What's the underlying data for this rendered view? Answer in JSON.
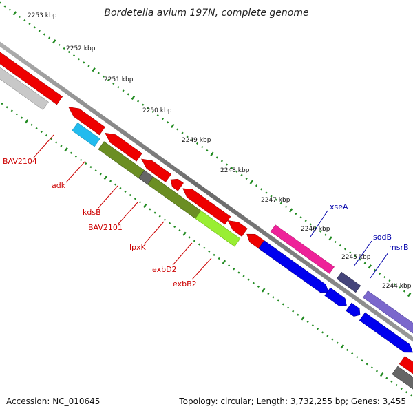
{
  "title": "Bordetella avium 197N, complete genome",
  "accession_text": "Accession: NC_010645",
  "topology_text": "Topology: circular; Length: 3,732,255 bp; Genes: 3,455",
  "colors": {
    "red": "#ee0000",
    "grey": "#c8c8c8",
    "cyan": "#22bbee",
    "olive": "#6b8e23",
    "lime": "#99ee33",
    "pink": "#ee2299",
    "blue": "#0000ee",
    "darkslate": "#44447a",
    "lavender": "#7b68cc",
    "darkgrey": "#666666",
    "tick": "#228b22",
    "label_red": "#cc0000",
    "label_blue": "#0000aa"
  },
  "kbp_labels": [
    "2253 kbp",
    "2252 kbp",
    "2251 kbp",
    "2250 kbp",
    "2249 kbp",
    "2248 kbp",
    "2247 kbp",
    "2246 kbp",
    "2245 kbp",
    "2244 kbp"
  ],
  "gene_labels": [
    {
      "name": "BAV2104",
      "strand": "reverse"
    },
    {
      "name": "adk",
      "strand": "reverse"
    },
    {
      "name": "kdsB",
      "strand": "reverse"
    },
    {
      "name": "BAV2101",
      "strand": "reverse"
    },
    {
      "name": "lpxK",
      "strand": "reverse"
    },
    {
      "name": "exbD2",
      "strand": "reverse"
    },
    {
      "name": "exbB2",
      "strand": "reverse"
    },
    {
      "name": "xseA",
      "strand": "forward"
    },
    {
      "name": "sodB",
      "strand": "forward"
    },
    {
      "name": "msrB",
      "strand": "forward"
    }
  ]
}
